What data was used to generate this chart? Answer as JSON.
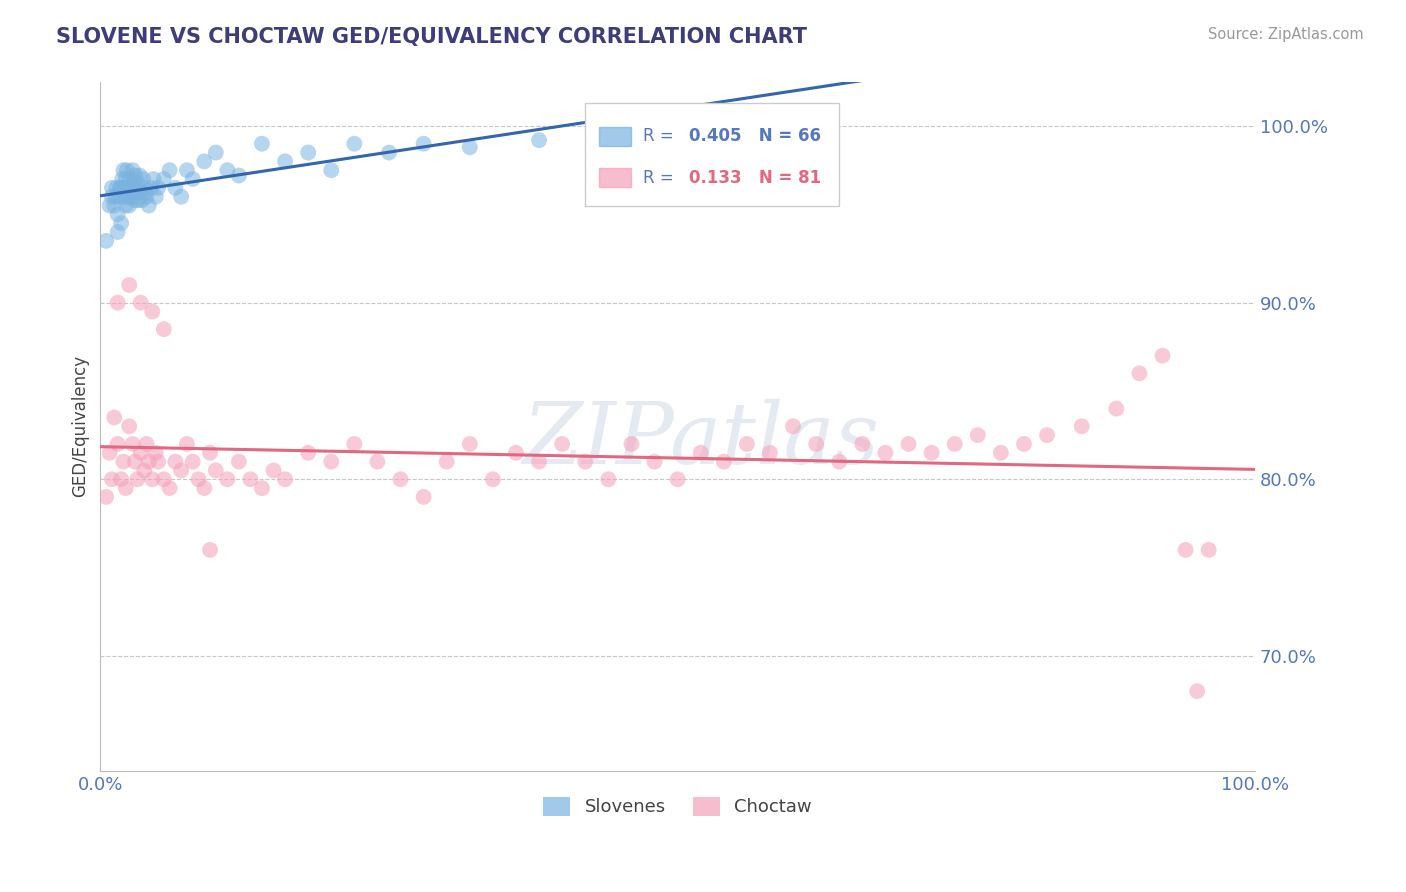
{
  "title": "SLOVENE VS CHOCTAW GED/EQUIVALENCY CORRELATION CHART",
  "source_text": "Source: ZipAtlas.com",
  "ylabel": "GED/Equivalency",
  "xlim": [
    0.0,
    1.0
  ],
  "ylim": [
    0.635,
    1.025
  ],
  "yticks": [
    0.7,
    0.8,
    0.9,
    1.0
  ],
  "ytick_labels": [
    "70.0%",
    "80.0%",
    "90.0%",
    "100.0%"
  ],
  "xtick_labels": [
    "0.0%",
    "100.0%"
  ],
  "xticks": [
    0.0,
    1.0
  ],
  "blue_R": 0.405,
  "blue_N": 66,
  "pink_R": 0.133,
  "pink_N": 81,
  "blue_color": "#7ab3e0",
  "pink_color": "#f4a0b8",
  "blue_line_color": "#3366aa",
  "pink_line_color": "#e06880",
  "legend_blue_label": "Slovenes",
  "legend_pink_label": "Choctaw",
  "watermark": "ZIPatlas",
  "title_color": "#3d3d7a",
  "tick_color": "#5577bb",
  "grid_color": "#c8c8c8",
  "background_color": "#ffffff",
  "blue_x": [
    0.005,
    0.008,
    0.01,
    0.01,
    0.012,
    0.013,
    0.014,
    0.015,
    0.015,
    0.016,
    0.017,
    0.018,
    0.018,
    0.019,
    0.02,
    0.02,
    0.021,
    0.022,
    0.022,
    0.023,
    0.023,
    0.024,
    0.025,
    0.025,
    0.026,
    0.027,
    0.028,
    0.028,
    0.029,
    0.03,
    0.03,
    0.031,
    0.032,
    0.033,
    0.034,
    0.035,
    0.036,
    0.037,
    0.038,
    0.039,
    0.04,
    0.042,
    0.044,
    0.046,
    0.048,
    0.05,
    0.055,
    0.06,
    0.065,
    0.07,
    0.075,
    0.08,
    0.09,
    0.1,
    0.11,
    0.12,
    0.14,
    0.16,
    0.18,
    0.2,
    0.22,
    0.25,
    0.28,
    0.32,
    0.38,
    0.45
  ],
  "blue_y": [
    0.935,
    0.955,
    0.96,
    0.965,
    0.955,
    0.96,
    0.965,
    0.94,
    0.95,
    0.96,
    0.965,
    0.945,
    0.965,
    0.97,
    0.96,
    0.975,
    0.965,
    0.955,
    0.97,
    0.96,
    0.975,
    0.965,
    0.955,
    0.96,
    0.97,
    0.965,
    0.96,
    0.975,
    0.968,
    0.972,
    0.958,
    0.963,
    0.968,
    0.958,
    0.972,
    0.963,
    0.958,
    0.97,
    0.965,
    0.962,
    0.96,
    0.955,
    0.965,
    0.97,
    0.96,
    0.965,
    0.97,
    0.975,
    0.965,
    0.96,
    0.975,
    0.97,
    0.98,
    0.985,
    0.975,
    0.972,
    0.99,
    0.98,
    0.985,
    0.975,
    0.99,
    0.985,
    0.99,
    0.988,
    0.992,
    0.995
  ],
  "pink_x": [
    0.005,
    0.008,
    0.01,
    0.012,
    0.015,
    0.018,
    0.02,
    0.022,
    0.025,
    0.028,
    0.03,
    0.032,
    0.035,
    0.038,
    0.04,
    0.042,
    0.045,
    0.048,
    0.05,
    0.055,
    0.06,
    0.065,
    0.07,
    0.075,
    0.08,
    0.085,
    0.09,
    0.095,
    0.1,
    0.11,
    0.12,
    0.13,
    0.14,
    0.15,
    0.16,
    0.18,
    0.2,
    0.22,
    0.24,
    0.26,
    0.28,
    0.3,
    0.32,
    0.34,
    0.36,
    0.38,
    0.4,
    0.42,
    0.44,
    0.46,
    0.48,
    0.5,
    0.52,
    0.54,
    0.56,
    0.58,
    0.6,
    0.62,
    0.64,
    0.66,
    0.68,
    0.7,
    0.72,
    0.74,
    0.76,
    0.78,
    0.8,
    0.82,
    0.85,
    0.88,
    0.9,
    0.92,
    0.94,
    0.96,
    0.015,
    0.025,
    0.035,
    0.045,
    0.055,
    0.095,
    0.95
  ],
  "pink_y": [
    0.79,
    0.815,
    0.8,
    0.835,
    0.82,
    0.8,
    0.81,
    0.795,
    0.83,
    0.82,
    0.81,
    0.8,
    0.815,
    0.805,
    0.82,
    0.81,
    0.8,
    0.815,
    0.81,
    0.8,
    0.795,
    0.81,
    0.805,
    0.82,
    0.81,
    0.8,
    0.795,
    0.815,
    0.805,
    0.8,
    0.81,
    0.8,
    0.795,
    0.805,
    0.8,
    0.815,
    0.81,
    0.82,
    0.81,
    0.8,
    0.79,
    0.81,
    0.82,
    0.8,
    0.815,
    0.81,
    0.82,
    0.81,
    0.8,
    0.82,
    0.81,
    0.8,
    0.815,
    0.81,
    0.82,
    0.815,
    0.83,
    0.82,
    0.81,
    0.82,
    0.815,
    0.82,
    0.815,
    0.82,
    0.825,
    0.815,
    0.82,
    0.825,
    0.83,
    0.84,
    0.86,
    0.87,
    0.76,
    0.76,
    0.9,
    0.91,
    0.9,
    0.895,
    0.885,
    0.76,
    0.68
  ]
}
